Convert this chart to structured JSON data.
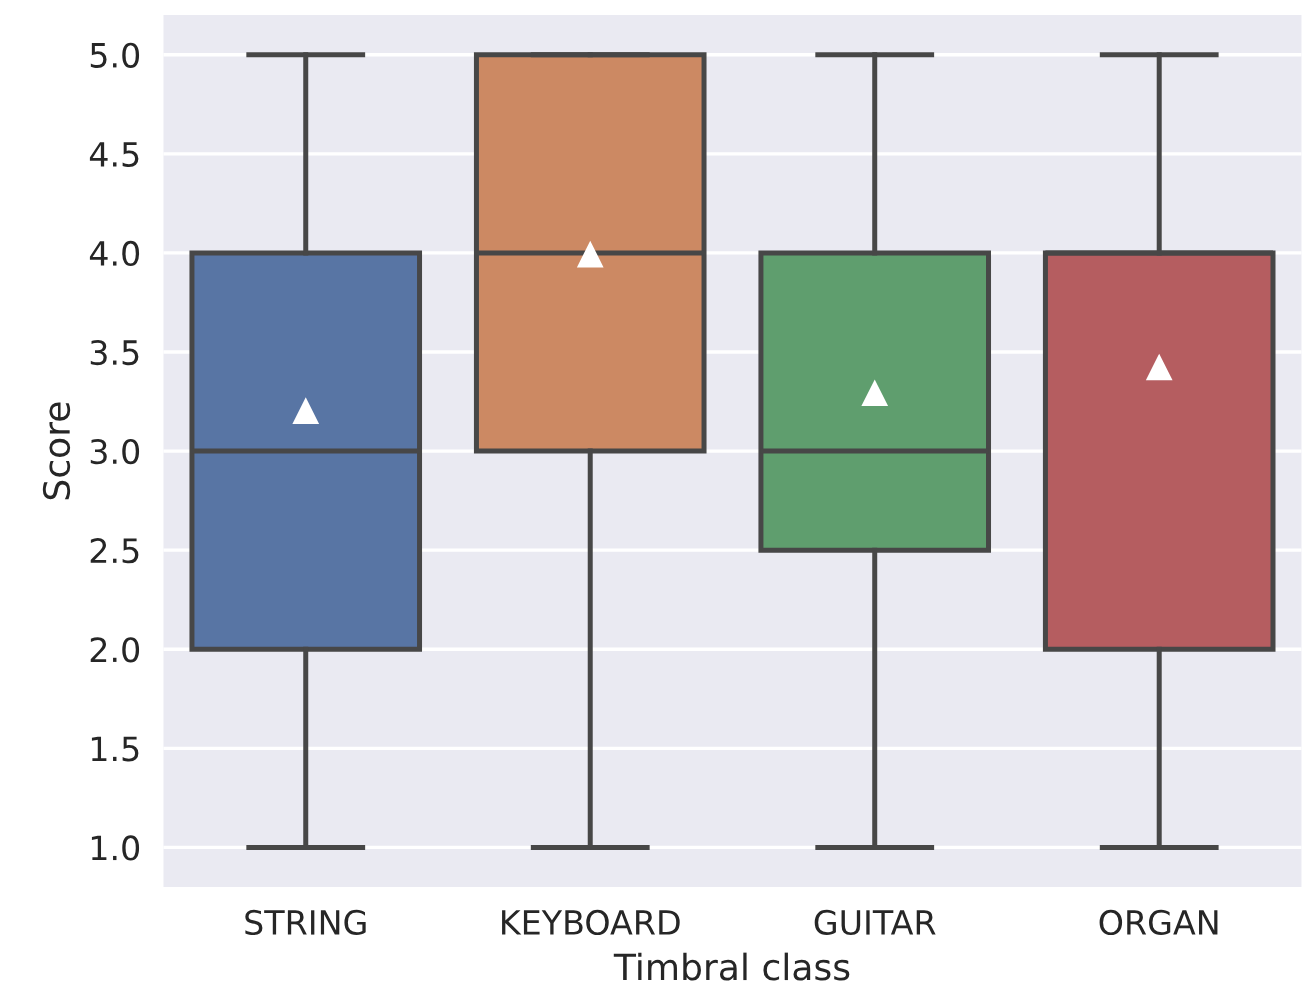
{
  "chart_data": {
    "type": "box",
    "xlabel": "Timbral class",
    "ylabel": "Score",
    "categories": [
      "STRING",
      "KEYBOARD",
      "GUITAR",
      "ORGAN"
    ],
    "colors": [
      "#5875a4",
      "#cc8963",
      "#5f9e6e",
      "#b55d60"
    ],
    "boxes": [
      {
        "low": 1.0,
        "q1": 2.0,
        "median": 3.0,
        "q3": 4.0,
        "high": 5.0,
        "mean": 3.2
      },
      {
        "low": 1.0,
        "q1": 3.0,
        "median": 4.0,
        "q3": 5.0,
        "high": 5.0,
        "mean": 3.99
      },
      {
        "low": 1.0,
        "q1": 2.5,
        "median": 3.0,
        "q3": 4.0,
        "high": 5.0,
        "mean": 3.29
      },
      {
        "low": 1.0,
        "q1": 2.0,
        "median": 4.0,
        "q3": 4.0,
        "high": 5.0,
        "mean": 3.42
      }
    ],
    "ylim": [
      0.8,
      5.2
    ],
    "yticks": [
      {
        "value": 1.0,
        "label": "1.0"
      },
      {
        "value": 1.5,
        "label": "1.5"
      },
      {
        "value": 2.0,
        "label": "2.0"
      },
      {
        "value": 2.5,
        "label": "2.5"
      },
      {
        "value": 3.0,
        "label": "3.0"
      },
      {
        "value": 3.5,
        "label": "3.5"
      },
      {
        "value": 4.0,
        "label": "4.0"
      },
      {
        "value": 4.5,
        "label": "4.5"
      },
      {
        "value": 5.0,
        "label": "5.0"
      }
    ],
    "grid": "y",
    "marker": "triangle"
  }
}
